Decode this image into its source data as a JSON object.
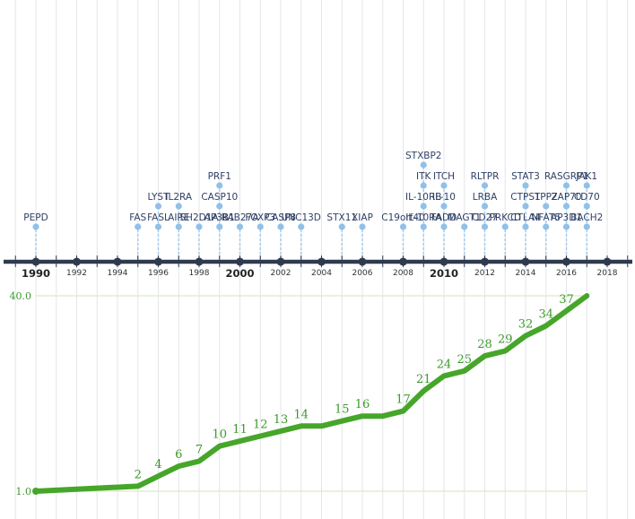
{
  "chart_data": [
    {
      "type": "timeline",
      "x_range": [
        1989,
        2019
      ],
      "year_ticks": [
        1990,
        1992,
        1994,
        1996,
        1998,
        2000,
        2002,
        2004,
        2006,
        2008,
        2010,
        2012,
        2014,
        2016,
        2018
      ],
      "major_years": [
        1990,
        2000,
        2010
      ],
      "events": [
        {
          "year": 1990,
          "genes": [
            "PEPD"
          ]
        },
        {
          "year": 1995,
          "genes": [
            "FAS"
          ]
        },
        {
          "year": 1996,
          "genes": [
            "FASL",
            "LYST"
          ]
        },
        {
          "year": 1997,
          "genes": [
            "AIRE",
            "IL2RA"
          ]
        },
        {
          "year": 1998,
          "genes": [
            "SH2D1A"
          ]
        },
        {
          "year": 1999,
          "genes": [
            "AP3B1",
            "CASP10",
            "PRF1"
          ]
        },
        {
          "year": 2000,
          "genes": [
            "RAB27A"
          ]
        },
        {
          "year": 2001,
          "genes": [
            "FOXP3"
          ]
        },
        {
          "year": 2002,
          "genes": [
            "CASP8"
          ]
        },
        {
          "year": 2003,
          "genes": [
            "UNC13D"
          ]
        },
        {
          "year": 2005,
          "genes": [
            "STX11"
          ]
        },
        {
          "year": 2006,
          "genes": [
            "XIAP"
          ]
        },
        {
          "year": 2008,
          "genes": [
            "C19orf40"
          ]
        },
        {
          "year": 2009,
          "genes": [
            "IL-10RA",
            "IL-10RB",
            "ITK",
            "STXBP2"
          ]
        },
        {
          "year": 2010,
          "genes": [
            "FADD",
            "IL-10",
            "ITCH"
          ]
        },
        {
          "year": 2011,
          "genes": [
            "MAGT1"
          ]
        },
        {
          "year": 2012,
          "genes": [
            "CD27",
            "LRBA",
            "RLTPR"
          ]
        },
        {
          "year": 2013,
          "genes": [
            "PRKCD"
          ]
        },
        {
          "year": 2014,
          "genes": [
            "CTLA4",
            "CTPS1",
            "STAT3"
          ]
        },
        {
          "year": 2015,
          "genes": [
            "NFAT5",
            "TPP2"
          ]
        },
        {
          "year": 2016,
          "genes": [
            "AP3D1",
            "ZAP70",
            "RASGRP1"
          ]
        },
        {
          "year": 2017,
          "genes": [
            "BACH2",
            "CD70",
            "JAK1"
          ]
        }
      ]
    },
    {
      "type": "line",
      "y_tick_labels": [
        "1.0",
        "40.0"
      ],
      "ylim": [
        1,
        40
      ],
      "x": [
        1990,
        1995,
        1996,
        1997,
        1998,
        1999,
        2000,
        2001,
        2002,
        2003,
        2004,
        2005,
        2006,
        2007,
        2008,
        2009,
        2010,
        2011,
        2012,
        2013,
        2014,
        2015,
        2016,
        2017
      ],
      "values": [
        1,
        2,
        4,
        6,
        7,
        10,
        11,
        12,
        13,
        14,
        14,
        15,
        16,
        16,
        17,
        21,
        24,
        25,
        28,
        29,
        32,
        34,
        37,
        40
      ],
      "labels": [
        {
          "x": 1995,
          "text": "2"
        },
        {
          "x": 1996,
          "text": "4"
        },
        {
          "x": 1997,
          "text": "6"
        },
        {
          "x": 1998,
          "text": "7"
        },
        {
          "x": 1999,
          "text": "10"
        },
        {
          "x": 2000,
          "text": "11"
        },
        {
          "x": 2001,
          "text": "12"
        },
        {
          "x": 2002,
          "text": "13"
        },
        {
          "x": 2003,
          "text": "14"
        },
        {
          "x": 2005,
          "text": "15"
        },
        {
          "x": 2006,
          "text": "16"
        },
        {
          "x": 2008,
          "text": "17"
        },
        {
          "x": 2009,
          "text": "21"
        },
        {
          "x": 2010,
          "text": "24"
        },
        {
          "x": 2011,
          "text": "25"
        },
        {
          "x": 2012,
          "text": "28"
        },
        {
          "x": 2013,
          "text": "29"
        },
        {
          "x": 2014,
          "text": "32"
        },
        {
          "x": 2015,
          "text": "34"
        },
        {
          "x": 2016,
          "text": "37"
        }
      ]
    }
  ],
  "colors": {
    "axis": "#2f3a4f",
    "dot": "#8fc1ea",
    "stem": "#a6ccee",
    "gene_text": "#2e3f66",
    "line": "#46a62a",
    "count_text": "#3b9a2b",
    "grid": "#e3e6ea",
    "ref_line": "#dcebc4"
  }
}
